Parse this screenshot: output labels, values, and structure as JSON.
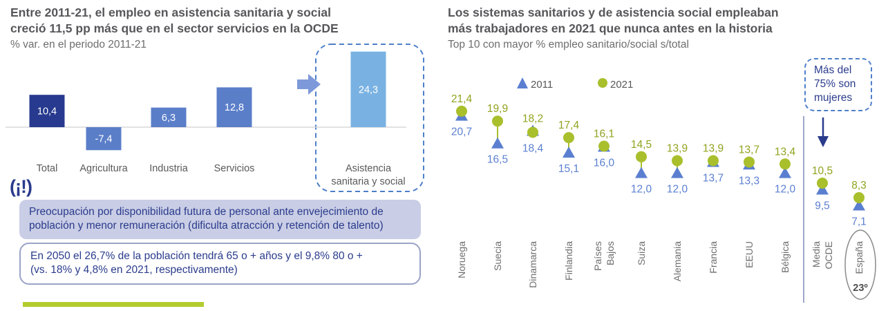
{
  "accent_colors": {
    "navy": "#2a3b8c",
    "dark_blue_bar": "#273a8f",
    "medium_blue_bar": "#5b7ec9",
    "light_blue_bar": "#79b2e2",
    "olive_marker": "#a9bf2c",
    "olive_label": "#91a31f",
    "blue_marker": "#5b7fd0",
    "lavender_box": "#c9cde5",
    "green_accent": "#b4cc2e",
    "dashed_border": "#4d7ec8",
    "axis_gray": "#d9d9d9",
    "separator_blue": "#8088b8",
    "ellipse_gray": "#8a8a8a"
  },
  "left_panel": {
    "title_lines": [
      "Entre 2011-21, el empleo en asistencia sanitaria y social",
      "creció 11,5 pp más que en el sector servicios en la OCDE"
    ],
    "subtitle": "% var. en el periodo 2011-21",
    "warning_icon": "(¡!)",
    "note_filled": "Preocupación por disponibilidad futura de personal ante envejecimiento de\npoblación y menor remuneración (dificulta atracción y retención de talento)",
    "note_outlined": "En 2050 el 26,7% de la población tendrá 65 o + años y el 9,8% 80 o +\n(vs. 18% y 4,8% en 2021, respectivamente)"
  },
  "right_panel": {
    "title_lines": [
      "Los sistemas sanitarios y de asistencia social empleaban",
      "más trabajadores en 2021 que nunca antes en la historia"
    ],
    "subtitle": "Top 10 con mayor % empleo sanitario/social s/total",
    "callout": "Más del\n75% son\nmujeres",
    "spain_rank": "23º"
  },
  "chart_data": [
    {
      "type": "bar",
      "title": "% var. en el periodo 2011-21",
      "categories": [
        "Total",
        "Agricultura",
        "Industria",
        "Servicios",
        "Asistencia sanitaria y social"
      ],
      "category_lines": [
        [
          "Total"
        ],
        [
          "Agricultura"
        ],
        [
          "Industria"
        ],
        [
          "Servicios"
        ],
        [
          "Asistencia",
          "sanitaria y social"
        ]
      ],
      "values": [
        10.4,
        -7.4,
        6.3,
        12.8,
        24.3
      ],
      "labels": [
        "10,4",
        "-7,4",
        "6,3",
        "12,8",
        "24,3"
      ],
      "bar_colors": [
        "#273a8f",
        "#5b7ec9",
        "#5b7ec9",
        "#5b7ec9",
        "#79b2e2"
      ],
      "highlight": "Asistencia sanitaria y social",
      "grid": false,
      "ylim": [
        -10,
        26
      ]
    },
    {
      "type": "scatter",
      "title": "Top 10 con mayor % empleo sanitario/social s/total",
      "categories": [
        "Noruega",
        "Suecia",
        "Dinamarca",
        "Finlandia",
        "Países Bajos",
        "Suiza",
        "Alemania",
        "Francia",
        "EEUU",
        "Bélgica",
        "Media OCDE",
        "España"
      ],
      "series": [
        {
          "name": "2011",
          "marker": "triangle",
          "color": "#5b7fd0",
          "values": [
            20.7,
            16.5,
            18.4,
            15.1,
            16.0,
            12.0,
            12.0,
            13.7,
            13.3,
            12.0,
            9.5,
            7.1
          ],
          "labels": [
            "20,7",
            "16,5",
            "18,4",
            "15,1",
            "16,0",
            "12,0",
            "12,0",
            "13,7",
            "13,3",
            "12,0",
            "9,5",
            "7,1"
          ]
        },
        {
          "name": "2021",
          "marker": "circle",
          "color": "#a9bf2c",
          "values": [
            21.4,
            19.9,
            18.2,
            17.4,
            16.1,
            14.5,
            13.9,
            13.9,
            13.7,
            13.4,
            10.5,
            8.3
          ],
          "labels": [
            "21,4",
            "19,9",
            "18,2",
            "17,4",
            "16,1",
            "14,5",
            "13,9",
            "13,9",
            "13,7",
            "13,4",
            "10,5",
            "8,3"
          ]
        }
      ],
      "legend_position": "top",
      "separator_after": "Bélgica",
      "grid": false,
      "ylim": [
        6,
        23
      ]
    }
  ]
}
